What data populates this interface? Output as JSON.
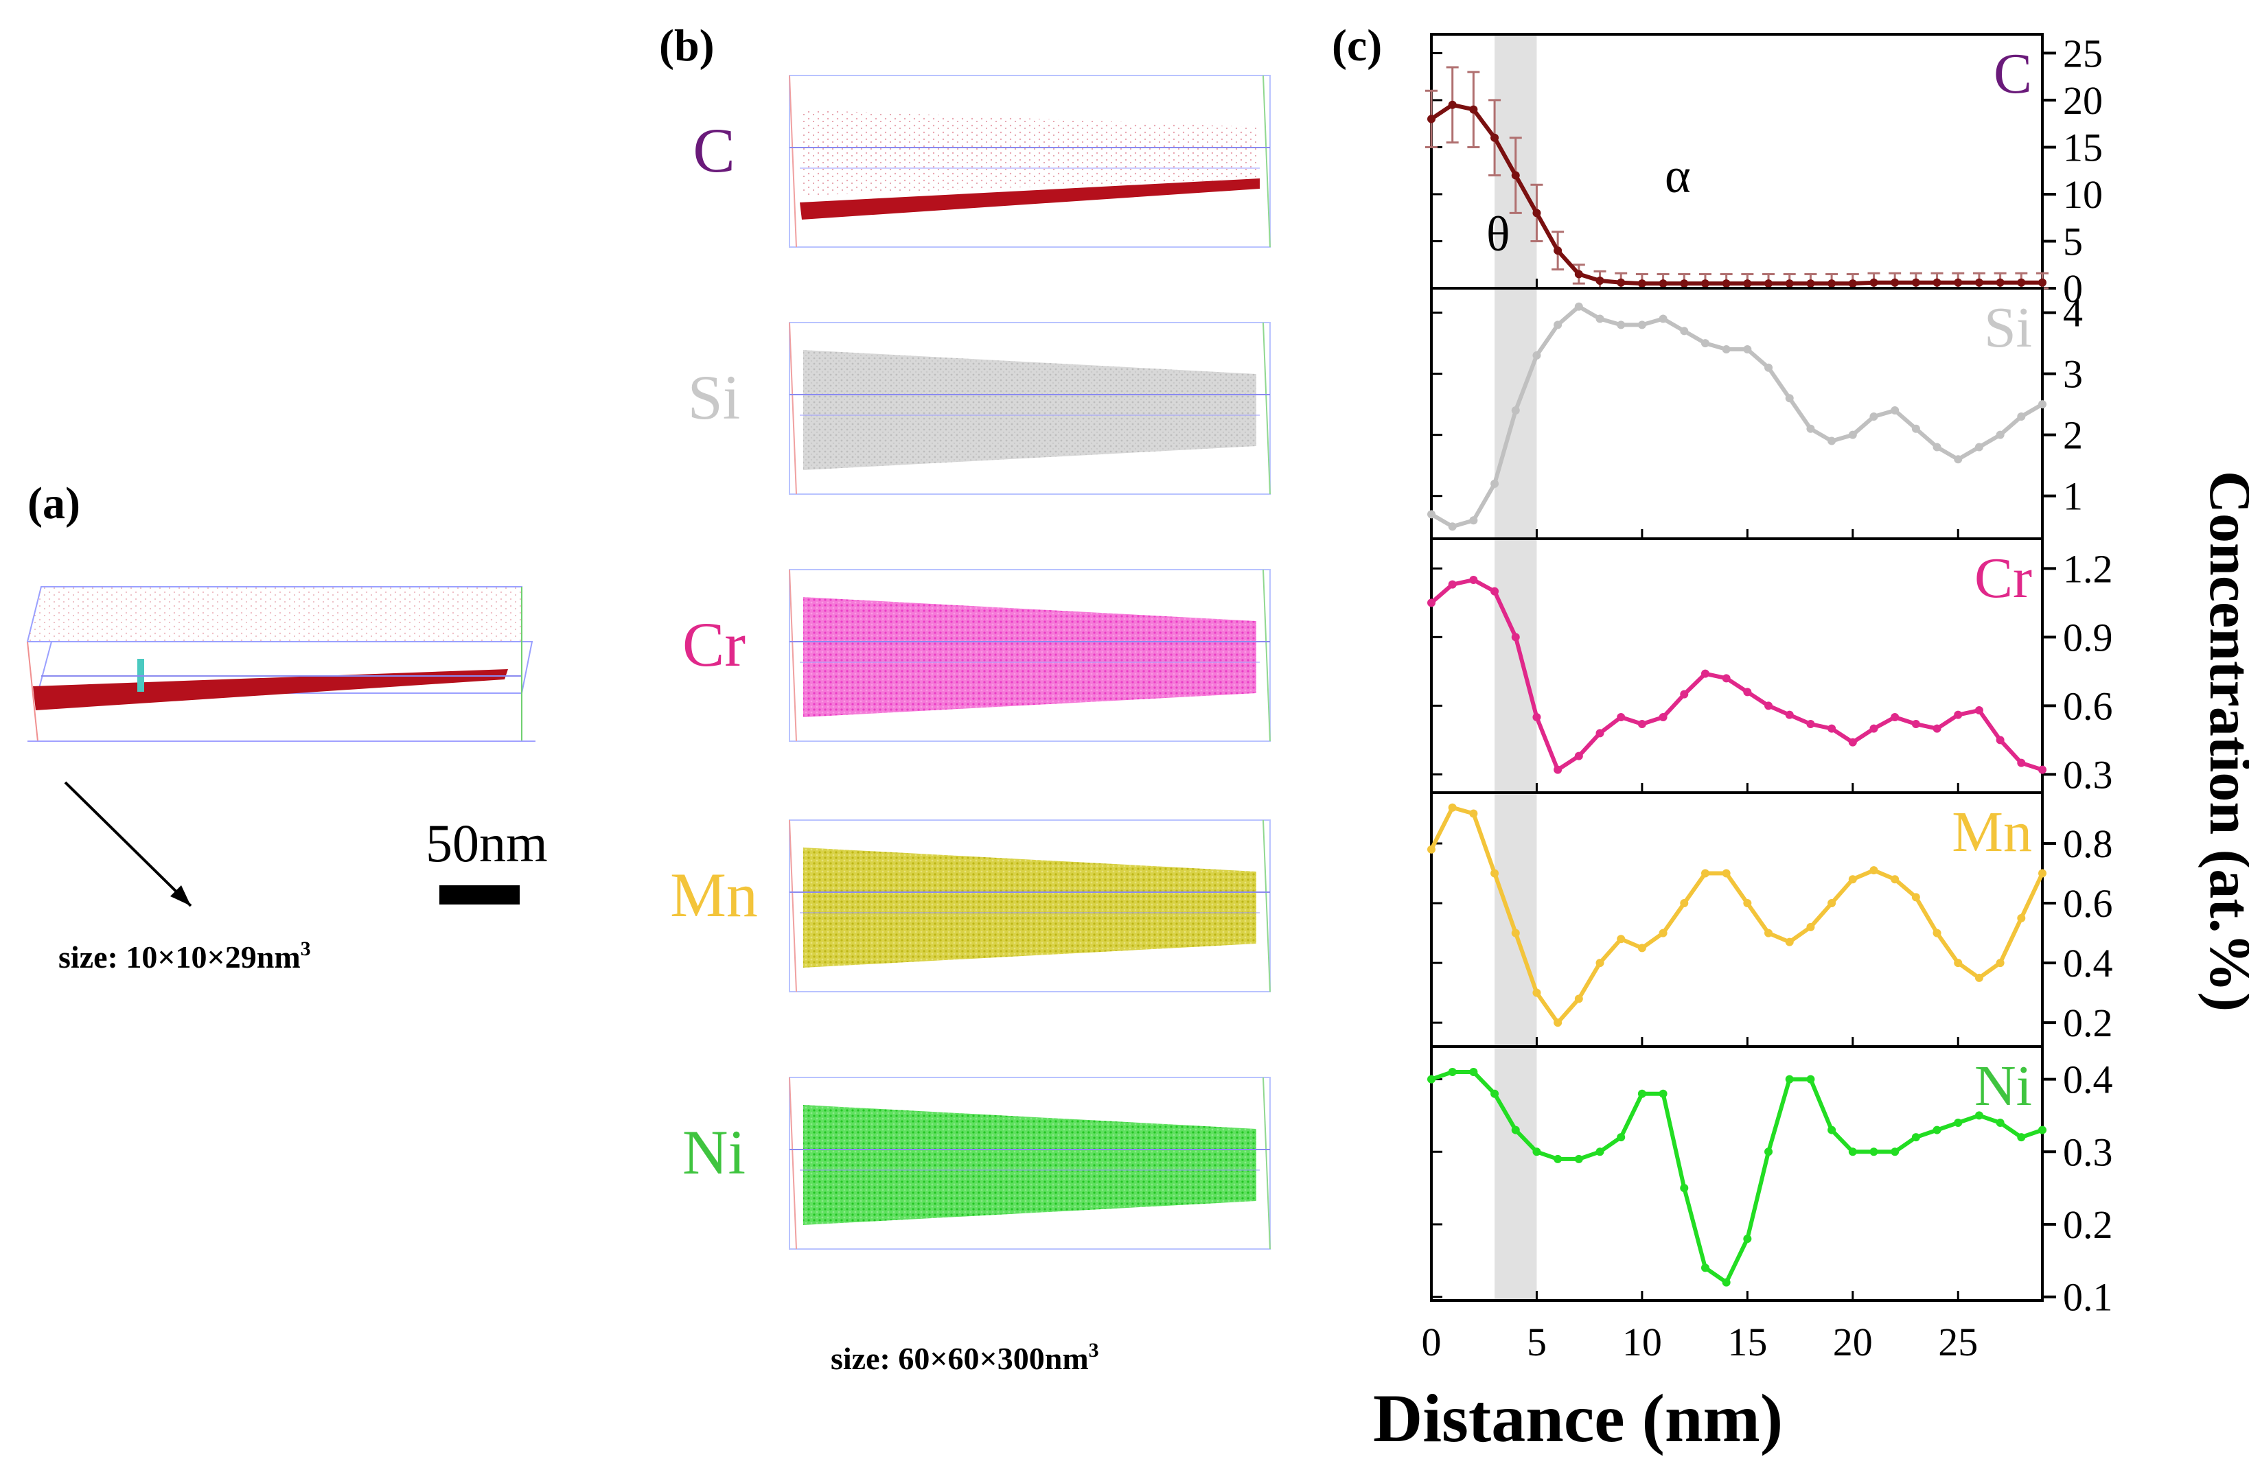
{
  "panel_a": {
    "label": "(a)",
    "scale_label": "50nm",
    "size_caption": "size: 10×10×29nm",
    "size_superscript": "3"
  },
  "panel_b": {
    "label": "(b)",
    "size_caption": "size: 60×60×300nm",
    "size_superscript": "3",
    "maps": [
      {
        "element": "C",
        "label_color": "#6a1a7a",
        "point_color": "#c0101a"
      },
      {
        "element": "Si",
        "label_color": "#c8c8c8",
        "point_color": "#b9b9b9"
      },
      {
        "element": "Cr",
        "label_color": "#e0288a",
        "point_color": "#f05ad2"
      },
      {
        "element": "Mn",
        "label_color": "#f3c43a",
        "point_color": "#c9c222"
      },
      {
        "element": "Ni",
        "label_color": "#3fc43f",
        "point_color": "#3ed63e"
      }
    ]
  },
  "panel_c": {
    "label": "(c)",
    "phase_labels": {
      "theta": "θ",
      "alpha": "α"
    },
    "shaded_region_x": [
      3.0,
      5.0
    ]
  },
  "chart_data": {
    "type": "line",
    "xlabel": "Distance (nm)",
    "ylabel": "Concentration (at.%)",
    "xlim": [
      0,
      29
    ],
    "xticks": [
      0,
      5,
      10,
      15,
      20,
      25
    ],
    "panels": [
      {
        "name": "C",
        "color": "#7a1010",
        "ylim": [
          0,
          27
        ],
        "yticks": [
          0,
          5,
          10,
          15,
          20,
          25
        ],
        "ytick_labels": [
          "0",
          "5",
          "10",
          "15",
          "20",
          "25"
        ],
        "error_bars": true,
        "x": [
          0,
          1,
          2,
          3,
          4,
          5,
          6,
          7,
          8,
          9,
          10,
          11,
          12,
          13,
          14,
          15,
          16,
          17,
          18,
          19,
          20,
          21,
          22,
          23,
          24,
          25,
          26,
          27,
          28,
          29
        ],
        "y": [
          18,
          19.5,
          19,
          16,
          12,
          8,
          4,
          1.5,
          0.8,
          0.6,
          0.5,
          0.5,
          0.5,
          0.5,
          0.5,
          0.5,
          0.5,
          0.5,
          0.5,
          0.5,
          0.5,
          0.6,
          0.6,
          0.6,
          0.6,
          0.6,
          0.6,
          0.6,
          0.6,
          0.6
        ],
        "err": [
          3,
          4,
          4,
          4,
          4,
          3,
          2,
          1,
          1,
          1,
          1,
          1,
          1,
          1,
          1,
          1,
          1,
          1,
          1,
          1,
          1,
          1,
          1,
          1,
          1,
          1,
          1,
          1,
          1,
          1
        ]
      },
      {
        "name": "Si",
        "color": "#c0c0c0",
        "ylim": [
          0.3,
          4.4
        ],
        "yticks": [
          1,
          2,
          3,
          4
        ],
        "ytick_labels": [
          "1",
          "2",
          "3",
          "4"
        ],
        "x": [
          0,
          1,
          2,
          3,
          4,
          5,
          6,
          7,
          8,
          9,
          10,
          11,
          12,
          13,
          14,
          15,
          16,
          17,
          18,
          19,
          20,
          21,
          22,
          23,
          24,
          25,
          26,
          27,
          28,
          29
        ],
        "y": [
          0.7,
          0.5,
          0.6,
          1.2,
          2.4,
          3.3,
          3.8,
          4.1,
          3.9,
          3.8,
          3.8,
          3.9,
          3.7,
          3.5,
          3.4,
          3.4,
          3.1,
          2.6,
          2.1,
          1.9,
          2.0,
          2.3,
          2.4,
          2.1,
          1.8,
          1.6,
          1.8,
          2.0,
          2.3,
          2.5
        ]
      },
      {
        "name": "Cr",
        "color": "#e0288a",
        "ylim": [
          0.22,
          1.33
        ],
        "yticks": [
          0.3,
          0.6,
          0.9,
          1.2
        ],
        "ytick_labels": [
          "0.3",
          "0.6",
          "0.9",
          "1.2"
        ],
        "x": [
          0,
          1,
          2,
          3,
          4,
          5,
          6,
          7,
          8,
          9,
          10,
          11,
          12,
          13,
          14,
          15,
          16,
          17,
          18,
          19,
          20,
          21,
          22,
          23,
          24,
          25,
          26,
          27,
          28,
          29
        ],
        "y": [
          1.05,
          1.13,
          1.15,
          1.1,
          0.9,
          0.55,
          0.32,
          0.38,
          0.48,
          0.55,
          0.52,
          0.55,
          0.65,
          0.74,
          0.72,
          0.66,
          0.6,
          0.56,
          0.52,
          0.5,
          0.44,
          0.5,
          0.55,
          0.52,
          0.5,
          0.56,
          0.58,
          0.45,
          0.35,
          0.32
        ]
      },
      {
        "name": "Mn",
        "color": "#f3c43a",
        "ylim": [
          0.12,
          0.97
        ],
        "yticks": [
          0.2,
          0.4,
          0.6,
          0.8
        ],
        "ytick_labels": [
          "0.2",
          "0.4",
          "0.6",
          "0.8"
        ],
        "x": [
          0,
          1,
          2,
          3,
          4,
          5,
          6,
          7,
          8,
          9,
          10,
          11,
          12,
          13,
          14,
          15,
          16,
          17,
          18,
          19,
          20,
          21,
          22,
          23,
          24,
          25,
          26,
          27,
          28,
          29
        ],
        "y": [
          0.78,
          0.92,
          0.9,
          0.7,
          0.5,
          0.3,
          0.2,
          0.28,
          0.4,
          0.48,
          0.45,
          0.5,
          0.6,
          0.7,
          0.7,
          0.6,
          0.5,
          0.47,
          0.52,
          0.6,
          0.68,
          0.71,
          0.68,
          0.62,
          0.5,
          0.4,
          0.35,
          0.4,
          0.55,
          0.7
        ]
      },
      {
        "name": "Ni",
        "color": "#22dd22",
        "ylim": [
          0.095,
          0.445
        ],
        "yticks": [
          0.1,
          0.2,
          0.3,
          0.4
        ],
        "ytick_labels": [
          "0.1",
          "0.2",
          "0.3",
          "0.4"
        ],
        "x": [
          0,
          1,
          2,
          3,
          4,
          5,
          6,
          7,
          8,
          9,
          10,
          11,
          12,
          13,
          14,
          15,
          16,
          17,
          18,
          19,
          20,
          21,
          22,
          23,
          24,
          25,
          26,
          27,
          28,
          29
        ],
        "y": [
          0.4,
          0.41,
          0.41,
          0.38,
          0.33,
          0.3,
          0.29,
          0.29,
          0.3,
          0.32,
          0.38,
          0.38,
          0.25,
          0.14,
          0.12,
          0.18,
          0.3,
          0.4,
          0.4,
          0.33,
          0.3,
          0.3,
          0.3,
          0.32,
          0.33,
          0.34,
          0.35,
          0.34,
          0.32,
          0.33
        ]
      }
    ]
  }
}
